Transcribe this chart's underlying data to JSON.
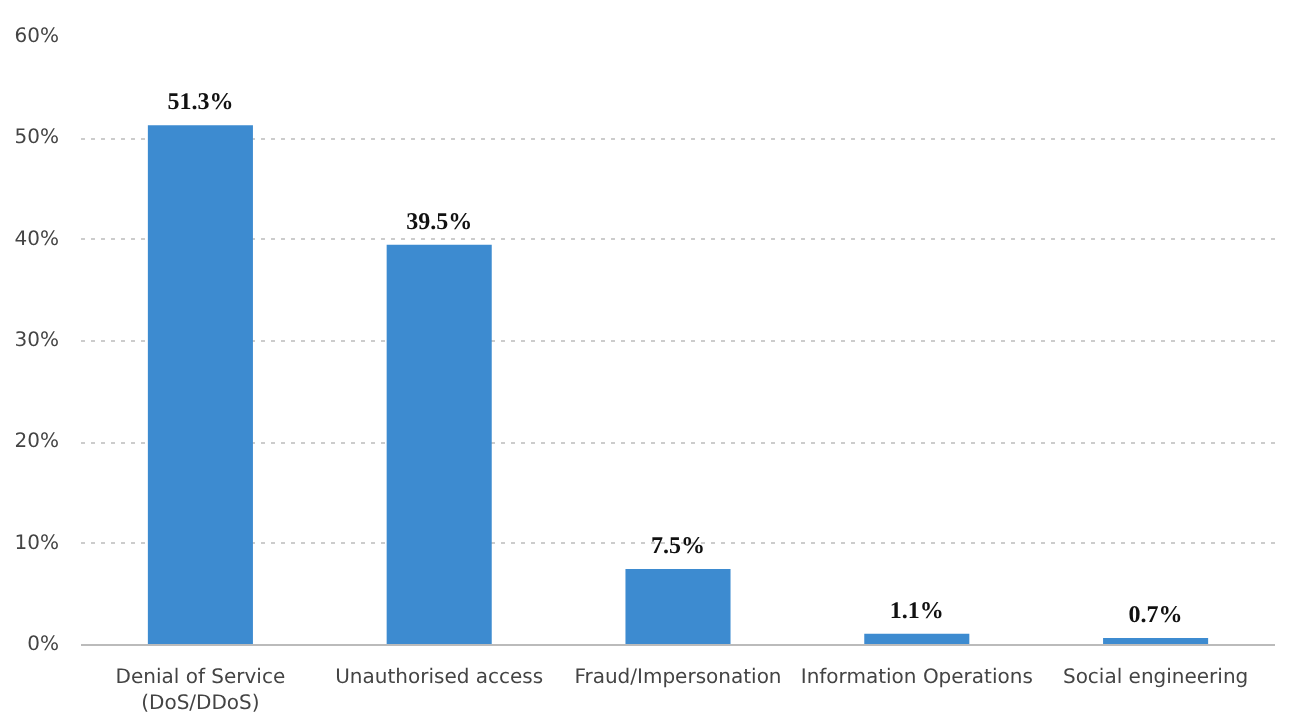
{
  "chart_data": {
    "type": "bar",
    "categories": [
      "Denial of Service\n(DoS/DDoS)",
      "Unauthorised access",
      "Fraud/Impersonation",
      "Information Operations",
      "Social engineering"
    ],
    "values": [
      51.3,
      39.5,
      7.5,
      1.1,
      0.7
    ],
    "value_labels": [
      "51.3%",
      "39.5%",
      "7.5%",
      "1.1%",
      "0.7%"
    ],
    "color": "#3d8bd0",
    "ylim": [
      0,
      60
    ],
    "yticks": [
      {
        "value": 0,
        "label": "0%"
      },
      {
        "value": 10,
        "label": "10%"
      },
      {
        "value": 20,
        "label": "20%"
      },
      {
        "value": 30,
        "label": "30%"
      },
      {
        "value": 40,
        "label": "40%"
      },
      {
        "value": 50,
        "label": "50%"
      },
      {
        "value": 60,
        "label": "60%"
      }
    ],
    "grid": "y",
    "line_style": "dotted"
  }
}
